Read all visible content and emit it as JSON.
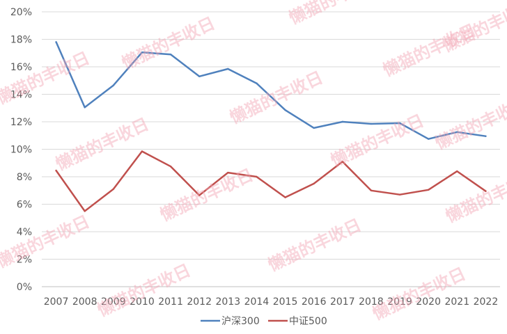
{
  "watermark": "懒猫的丰收日",
  "chart_data": {
    "type": "line",
    "title": "",
    "xlabel": "",
    "ylabel": "",
    "x": [
      "2007",
      "2008",
      "2009",
      "2010",
      "2011",
      "2012",
      "2013",
      "2014",
      "2015",
      "2016",
      "2017",
      "2018",
      "2019",
      "2020",
      "2021",
      "2022"
    ],
    "ylim": [
      0,
      20
    ],
    "yticks": [
      "0%",
      "2%",
      "4%",
      "6%",
      "8%",
      "10%",
      "12%",
      "14%",
      "16%",
      "18%",
      "20%"
    ],
    "grid": true,
    "legend_position": "bottom",
    "series": [
      {
        "name": "沪深300",
        "color": "#4f81bd",
        "values": [
          17.8,
          13.05,
          14.65,
          17.05,
          16.9,
          15.3,
          15.85,
          14.8,
          12.85,
          11.55,
          12.0,
          11.85,
          11.9,
          10.75,
          11.25,
          10.95
        ]
      },
      {
        "name": "中证500",
        "color": "#c0504d",
        "values": [
          8.45,
          5.5,
          7.1,
          9.85,
          8.75,
          6.65,
          8.3,
          8.0,
          6.5,
          7.5,
          9.1,
          7.0,
          6.7,
          7.05,
          8.4,
          6.95
        ]
      }
    ]
  }
}
